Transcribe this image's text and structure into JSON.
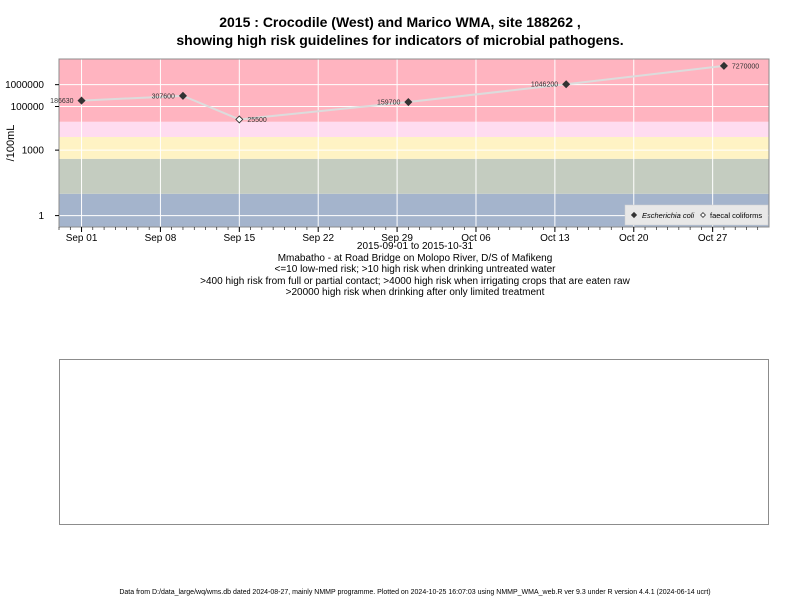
{
  "chart_data": {
    "type": "scatter",
    "title": "2015 : Crocodile (West) and Marico WMA, site 188262 ,",
    "subtitle": "showing high risk guidelines for indicators of microbial pathogens.",
    "ylabel": "/100mL",
    "y_scale": "log",
    "ylim": [
      0.3,
      15000000
    ],
    "y_ticks": [
      1,
      1000,
      100000,
      1000000
    ],
    "y_tick_labels": [
      "1",
      "1000",
      "100000",
      "1000000"
    ],
    "xlim": [
      "2015-08-30",
      "2015-10-31"
    ],
    "x_ticks": [
      "2015-09-01",
      "2015-09-08",
      "2015-09-15",
      "2015-09-22",
      "2015-09-29",
      "2015-10-06",
      "2015-10-13",
      "2015-10-20",
      "2015-10-27"
    ],
    "x_tick_labels": [
      "Sep 01",
      "Sep 08",
      "Sep 15",
      "Sep 22",
      "Sep 29",
      "Oct 06",
      "Oct 13",
      "Oct 20",
      "Oct 27"
    ],
    "grid": true,
    "legend_position": "bottom-right",
    "risk_bands": [
      {
        "from": 0.3,
        "to": 10,
        "color": "#a4b4cc"
      },
      {
        "from": 10,
        "to": 400,
        "color": "#c4ccc0"
      },
      {
        "from": 400,
        "to": 4000,
        "color": "#fff3c4"
      },
      {
        "from": 4000,
        "to": 20000,
        "color": "#ffdcf0"
      },
      {
        "from": 20000,
        "to": 15000000,
        "color": "#ffb4c0"
      }
    ],
    "series": [
      {
        "name": "Escherichia coli",
        "marker": "filled-diamond",
        "color": "#333333",
        "points": [
          {
            "x": "2015-09-01",
            "y": 186630,
            "label": "186630"
          },
          {
            "x": "2015-09-10",
            "y": 307600,
            "label": "307600"
          },
          {
            "x": "2015-09-30",
            "y": 159700,
            "label": "159700"
          },
          {
            "x": "2015-10-14",
            "y": 1046200,
            "label": "1046200"
          },
          {
            "x": "2015-10-28",
            "y": 7270000,
            "label": "7270000"
          }
        ]
      },
      {
        "name": "faecal coliforms",
        "marker": "open-diamond",
        "color": "#333333",
        "points": [
          {
            "x": "2015-09-15",
            "y": 25500,
            "label": "25500"
          }
        ]
      }
    ],
    "line_color": "#dcdcdc"
  },
  "xinfo": {
    "date_range": "2015-09-01 to 2015-10-31",
    "site": "Mmabatho - at Road Bridge on Molopo River, D/S of Mafikeng",
    "risk1": "<=10 low-med risk; >10 high risk when drinking untreated water",
    "risk2": ">400 high risk from full or partial contact; >4000 high risk when irrigating crops that are eaten raw",
    "risk3": ">20000 high risk when drinking after only limited treatment"
  },
  "footer": "Data from D:/data_large/wq/wms.db dated 2024-08-27, mainly NMMP programme. Plotted on 2024-10-25 16:07:03 using NMMP_WMA_web.R ver 9.3 under R version 4.4.1 (2024-06-14 ucrt)"
}
